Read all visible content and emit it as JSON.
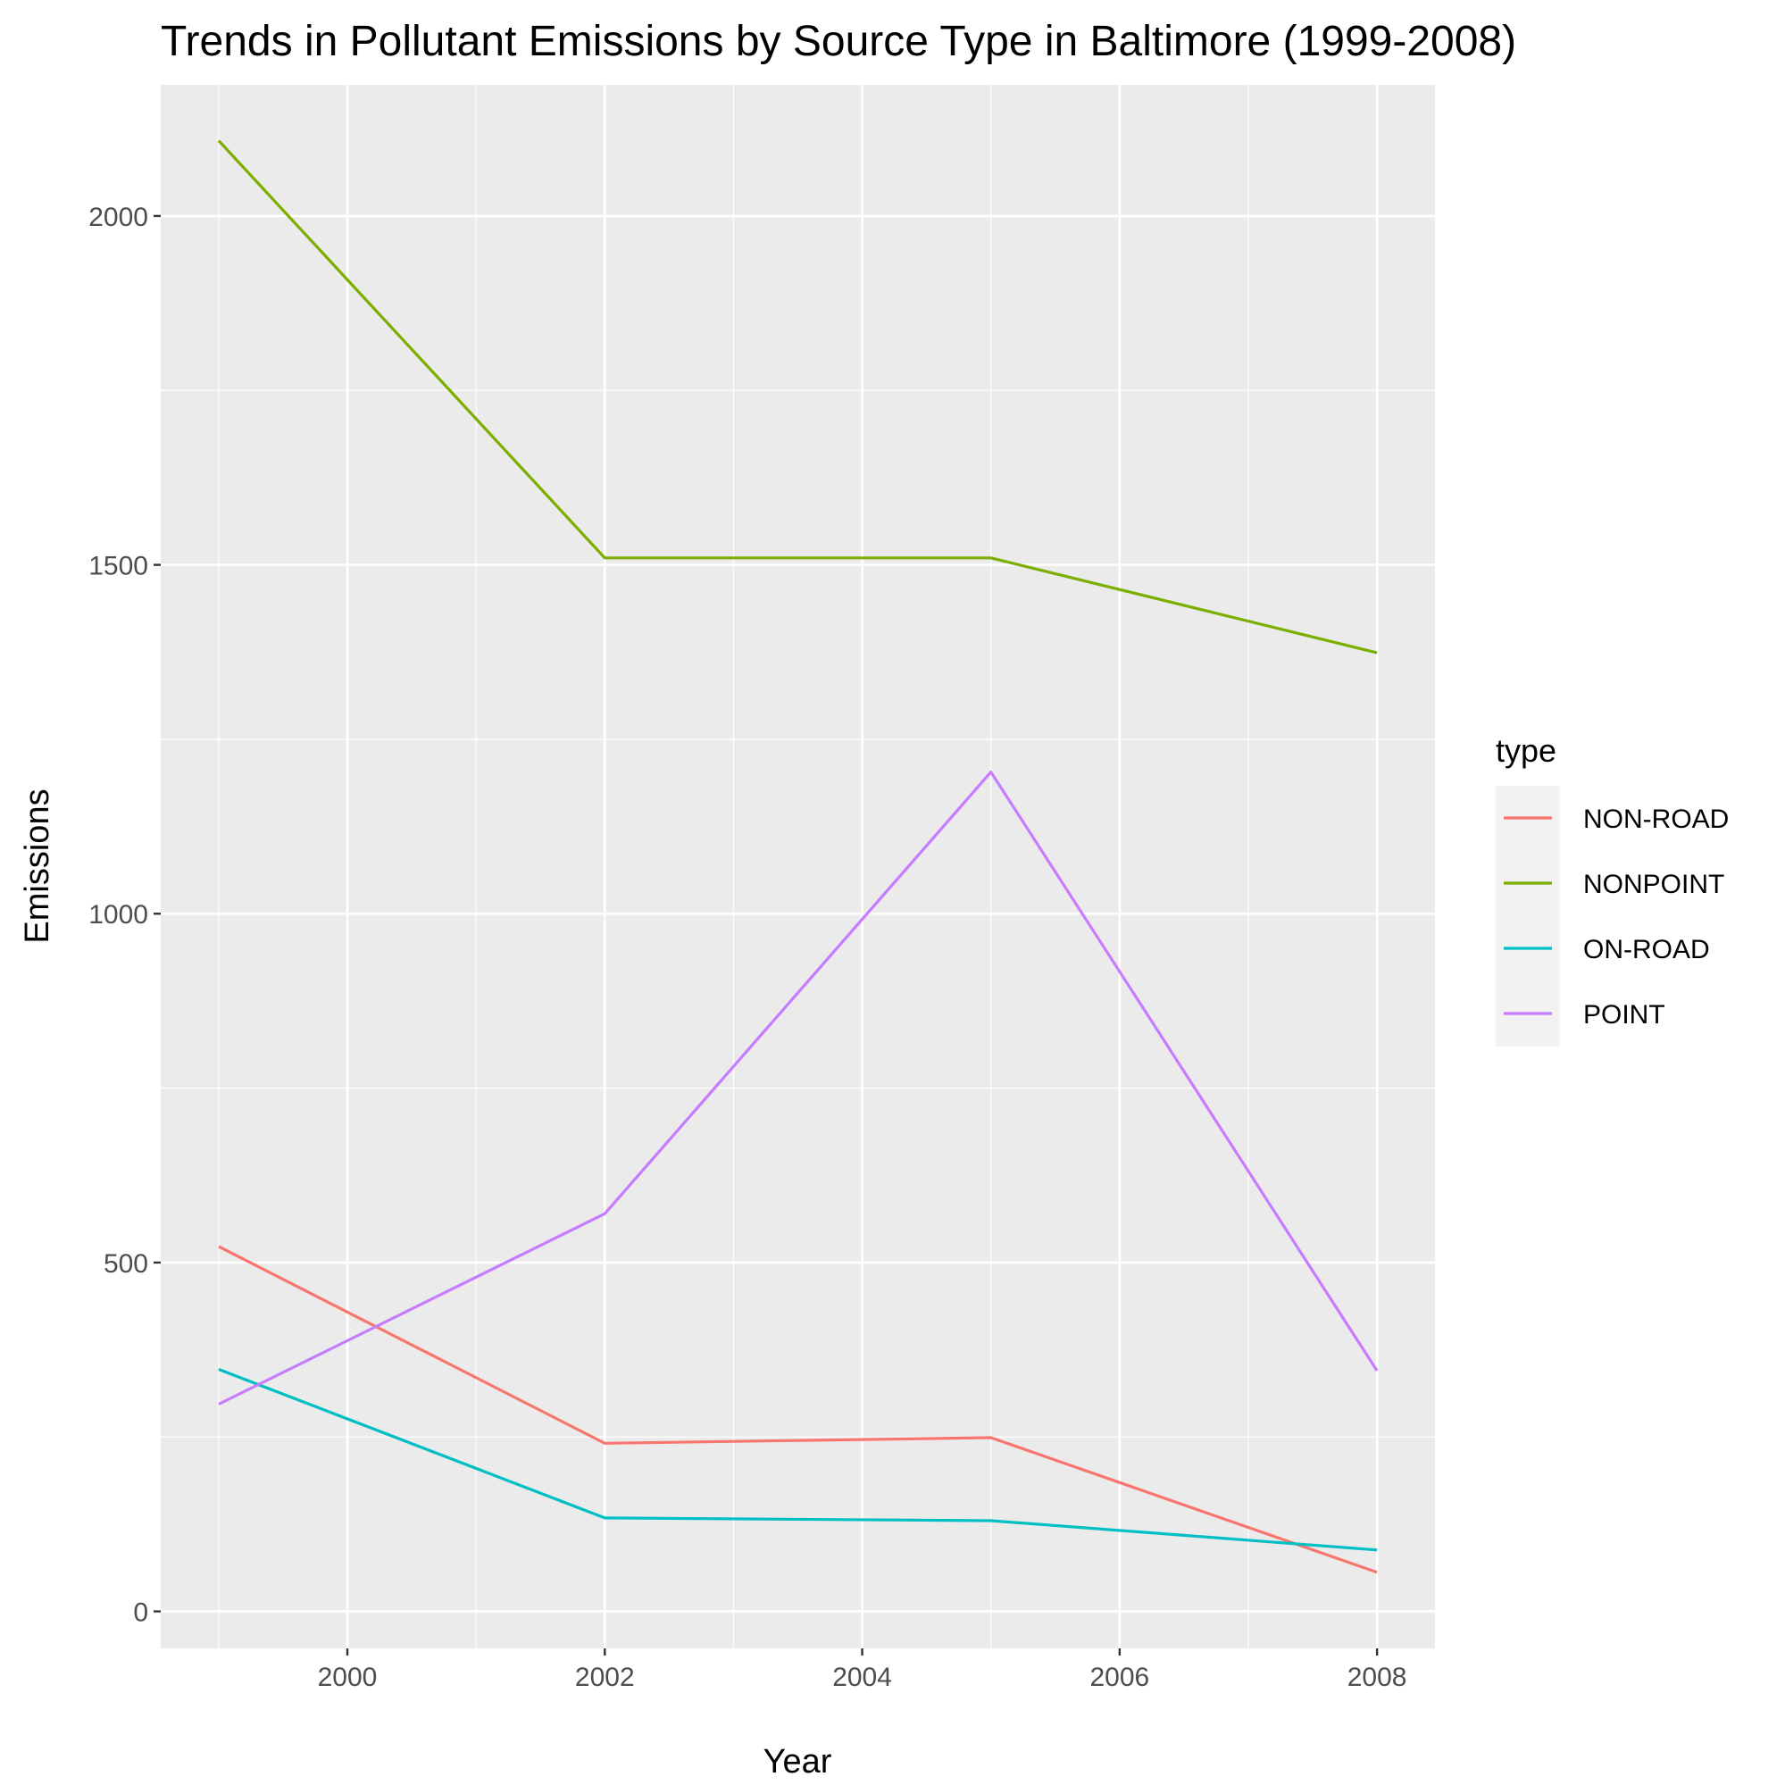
{
  "chart_data": {
    "type": "line",
    "title": "Trends in Pollutant Emissions by Source Type in Baltimore (1999-2008)",
    "xlabel": "Year",
    "ylabel": "Emissions",
    "x": [
      1999,
      2002,
      2005,
      2008
    ],
    "xlim": [
      1998.55,
      2008.45
    ],
    "ylim": [
      -53,
      2188
    ],
    "x_ticks": [
      2000,
      2002,
      2004,
      2006,
      2008
    ],
    "y_ticks": [
      0,
      500,
      1000,
      1500,
      2000
    ],
    "grid": true,
    "legend_title": "type",
    "legend_position": "right",
    "series": [
      {
        "name": "NON-ROAD",
        "color": "#F8766D",
        "values": [
          523,
          241,
          249,
          56
        ]
      },
      {
        "name": "NONPOINT",
        "color": "#7CAE00",
        "values": [
          2108,
          1510,
          1510,
          1374
        ]
      },
      {
        "name": "ON-ROAD",
        "color": "#00BFC4",
        "values": [
          347,
          134,
          130,
          88
        ]
      },
      {
        "name": "POINT",
        "color": "#C77CFF",
        "values": [
          297,
          570,
          1203,
          345
        ]
      }
    ]
  }
}
